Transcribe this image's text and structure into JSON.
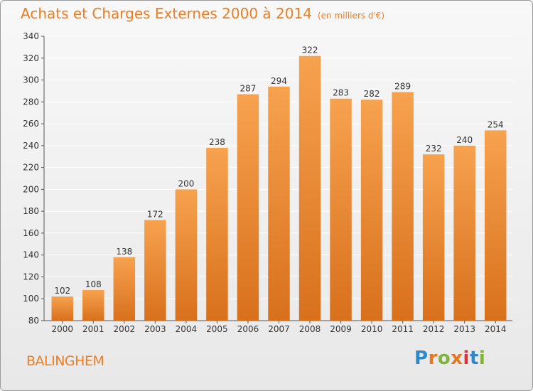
{
  "colors": {
    "bar_top": "#f7a24f",
    "bar_bottom": "#d8701c",
    "title": "#ee7d22",
    "grid": "#ffffff"
  },
  "header": {
    "title": "Achats et Charges Externes 2000 à 2014",
    "subtitle": "(en milliers d'€)"
  },
  "footer": {
    "city": "BALINGHEM",
    "logo": "Proxiti"
  },
  "chart_data": {
    "type": "bar",
    "categories": [
      "2000",
      "2001",
      "2002",
      "2003",
      "2004",
      "2005",
      "2006",
      "2007",
      "2008",
      "2009",
      "2010",
      "2011",
      "2012",
      "2013",
      "2014"
    ],
    "values": [
      102,
      108,
      138,
      172,
      200,
      238,
      287,
      294,
      322,
      283,
      282,
      289,
      232,
      240,
      254
    ],
    "ylim": [
      80,
      340
    ],
    "yticks": [
      80,
      100,
      120,
      140,
      160,
      180,
      200,
      220,
      240,
      260,
      280,
      300,
      320,
      340
    ],
    "grid": true,
    "legend": "none"
  }
}
